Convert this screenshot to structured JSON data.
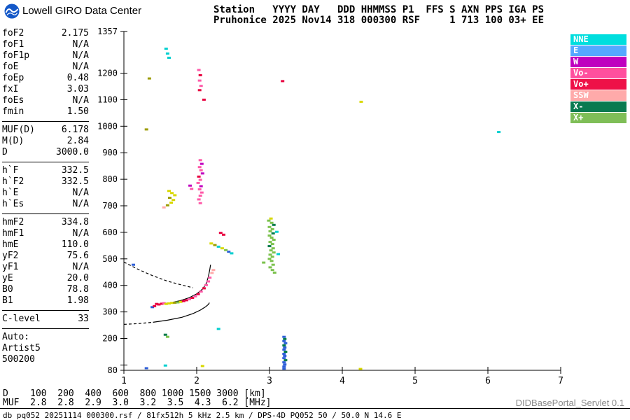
{
  "header": {
    "brand": "Lowell GIRO Data Center",
    "station_line1": "Station   YYYY DAY   DDD HHMMSS P1  FFS S AXN PPS IGA PS",
    "station_line2": "Pruhonice 2025 Nov14 318 000300 RSF     1 713 100 03+ EE"
  },
  "params": {
    "groups": [
      [
        {
          "label": "foF2",
          "value": "2.175"
        },
        {
          "label": "foF1",
          "value": "N/A"
        },
        {
          "label": "foF1p",
          "value": "N/A"
        },
        {
          "label": "foE",
          "value": "N/A"
        },
        {
          "label": "foEp",
          "value": "0.48"
        },
        {
          "label": "fxI",
          "value": "3.03"
        },
        {
          "label": "foEs",
          "value": "N/A"
        },
        {
          "label": "fmin",
          "value": "1.50"
        }
      ],
      [
        {
          "label": "MUF(D)",
          "value": "6.178"
        },
        {
          "label": "M(D)",
          "value": "2.84"
        },
        {
          "label": "D",
          "value": "3000.0"
        }
      ],
      [
        {
          "label": "h`F",
          "value": "332.5"
        },
        {
          "label": "h`F2",
          "value": "332.5"
        },
        {
          "label": "h`E",
          "value": "N/A"
        },
        {
          "label": "h`Es",
          "value": "N/A"
        }
      ],
      [
        {
          "label": "hmF2",
          "value": "334.8"
        },
        {
          "label": "hmF1",
          "value": "N/A"
        },
        {
          "label": "hmE",
          "value": "110.0"
        },
        {
          "label": "yF2",
          "value": "75.6"
        },
        {
          "label": "yF1",
          "value": "N/A"
        },
        {
          "label": "yE",
          "value": "20.0"
        },
        {
          "label": "B0",
          "value": "78.8"
        },
        {
          "label": "B1",
          "value": "1.98"
        }
      ],
      [
        {
          "label": "C-level",
          "value": "33"
        }
      ]
    ],
    "auto_lines": [
      "Auto:",
      "Artist5",
      "500200"
    ]
  },
  "legend": {
    "items": [
      {
        "label": "NNE",
        "color": "#00dede"
      },
      {
        "label": "E",
        "color": "#55a8ff"
      },
      {
        "label": "W",
        "color": "#bf00bf"
      },
      {
        "label": "Vo-",
        "color": "#ff4f9e"
      },
      {
        "label": "Vo+",
        "color": "#ee1148"
      },
      {
        "label": "SSW",
        "color": "#ffaaaa"
      },
      {
        "label": "X-",
        "color": "#0a7a50"
      },
      {
        "label": "X+",
        "color": "#7fbe57"
      }
    ]
  },
  "chart_data": {
    "type": "scatter",
    "title": "Pruhonice ionogram 2025 Nov14 318 000300",
    "x_unit": "MHz",
    "y_unit": "km",
    "xlim": [
      1,
      7
    ],
    "ylim": [
      80,
      1357
    ],
    "x_ticks": [
      1,
      2,
      3,
      4,
      5,
      6,
      7
    ],
    "y_tick_labels": [
      1357,
      1200,
      1100,
      1000,
      900,
      800,
      700,
      600,
      500,
      400,
      300,
      200,
      80
    ],
    "y_minor_ticks": [
      100
    ],
    "grid": false,
    "legend_position": "right",
    "palette": {
      "cyan": "#00cfcf",
      "blue": "#2e5fd8",
      "magenta": "#c000c0",
      "pink": "#ff59a8",
      "red": "#e80040",
      "salmon": "#ffaaaa",
      "dgreen": "#007a4a",
      "lgreen": "#7cc24e",
      "yellow": "#d8d800",
      "olive": "#9c9c00"
    },
    "points": [
      [
        1.58,
        1292,
        "cyan"
      ],
      [
        1.6,
        1274,
        "cyan"
      ],
      [
        1.62,
        1258,
        "cyan"
      ],
      [
        2.03,
        1212,
        "pink"
      ],
      [
        2.05,
        1192,
        "red"
      ],
      [
        2.04,
        1172,
        "pink"
      ],
      [
        2.06,
        1152,
        "pink"
      ],
      [
        2.04,
        1136,
        "red"
      ],
      [
        1.35,
        1180,
        "olive"
      ],
      [
        3.18,
        1170,
        "red"
      ],
      [
        2.1,
        1100,
        "red"
      ],
      [
        4.26,
        1092,
        "yellow"
      ],
      [
        1.31,
        988,
        "olive"
      ],
      [
        6.15,
        978,
        "cyan"
      ],
      [
        2.05,
        872,
        "pink"
      ],
      [
        2.07,
        858,
        "magenta"
      ],
      [
        2.04,
        846,
        "pink"
      ],
      [
        2.06,
        834,
        "pink"
      ],
      [
        2.08,
        822,
        "magenta"
      ],
      [
        2.03,
        810,
        "red"
      ],
      [
        2.05,
        798,
        "pink"
      ],
      [
        2.02,
        786,
        "pink"
      ],
      [
        2.06,
        774,
        "magenta"
      ],
      [
        2.04,
        762,
        "pink"
      ],
      [
        2.07,
        750,
        "pink"
      ],
      [
        2.05,
        738,
        "pink"
      ],
      [
        2.03,
        724,
        "pink"
      ],
      [
        2.05,
        710,
        "pink"
      ],
      [
        1.91,
        776,
        "magenta"
      ],
      [
        1.93,
        764,
        "pink"
      ],
      [
        1.62,
        756,
        "yellow"
      ],
      [
        1.66,
        748,
        "yellow"
      ],
      [
        1.7,
        740,
        "yellow"
      ],
      [
        1.63,
        730,
        "olive"
      ],
      [
        1.68,
        722,
        "yellow"
      ],
      [
        1.65,
        712,
        "yellow"
      ],
      [
        1.6,
        702,
        "olive"
      ],
      [
        1.55,
        694,
        "salmon"
      ],
      [
        3.02,
        652,
        "yellow"
      ],
      [
        2.99,
        644,
        "lgreen"
      ],
      [
        3.03,
        636,
        "lgreen"
      ],
      [
        3.06,
        628,
        "dgreen"
      ],
      [
        3.0,
        620,
        "lgreen"
      ],
      [
        3.04,
        612,
        "lgreen"
      ],
      [
        3.01,
        604,
        "lgreen"
      ],
      [
        3.1,
        602,
        "cyan"
      ],
      [
        3.05,
        596,
        "dgreen"
      ],
      [
        3.0,
        588,
        "lgreen"
      ],
      [
        3.03,
        580,
        "lgreen"
      ],
      [
        3.06,
        572,
        "lgreen"
      ],
      [
        3.01,
        564,
        "lgreen"
      ],
      [
        3.04,
        556,
        "lgreen"
      ],
      [
        3.0,
        548,
        "dgreen"
      ],
      [
        3.05,
        540,
        "lgreen"
      ],
      [
        3.02,
        532,
        "lgreen"
      ],
      [
        3.06,
        524,
        "lgreen"
      ],
      [
        3.12,
        518,
        "cyan"
      ],
      [
        3.01,
        516,
        "lgreen"
      ],
      [
        3.04,
        508,
        "lgreen"
      ],
      [
        3.0,
        500,
        "lgreen"
      ],
      [
        3.03,
        492,
        "lgreen"
      ],
      [
        2.92,
        486,
        "lgreen"
      ],
      [
        3.05,
        478,
        "lgreen"
      ],
      [
        3.01,
        468,
        "lgreen"
      ],
      [
        3.04,
        458,
        "lgreen"
      ],
      [
        3.07,
        448,
        "lgreen"
      ],
      [
        2.2,
        558,
        "yellow"
      ],
      [
        2.25,
        552,
        "olive"
      ],
      [
        2.3,
        546,
        "cyan"
      ],
      [
        2.35,
        540,
        "yellow"
      ],
      [
        2.4,
        533,
        "lgreen"
      ],
      [
        2.44,
        527,
        "blue"
      ],
      [
        2.48,
        521,
        "cyan"
      ],
      [
        2.33,
        598,
        "red"
      ],
      [
        2.37,
        591,
        "red"
      ],
      [
        1.13,
        478,
        "blue"
      ],
      [
        1.39,
        318,
        "blue"
      ],
      [
        1.42,
        322,
        "red"
      ],
      [
        1.45,
        330,
        "red"
      ],
      [
        1.48,
        328,
        "red"
      ],
      [
        1.52,
        331,
        "red"
      ],
      [
        1.55,
        333,
        "pink"
      ],
      [
        1.58,
        330,
        "yellow"
      ],
      [
        1.62,
        332,
        "yellow"
      ],
      [
        1.66,
        334,
        "yellow"
      ],
      [
        1.7,
        335,
        "olive"
      ],
      [
        1.74,
        336,
        "lgreen"
      ],
      [
        1.78,
        338,
        "yellow"
      ],
      [
        1.82,
        341,
        "red"
      ],
      [
        1.86,
        344,
        "red"
      ],
      [
        1.9,
        348,
        "pink"
      ],
      [
        1.94,
        353,
        "red"
      ],
      [
        1.98,
        359,
        "pink"
      ],
      [
        2.02,
        367,
        "red"
      ],
      [
        2.06,
        377,
        "pink"
      ],
      [
        2.1,
        389,
        "red"
      ],
      [
        2.13,
        401,
        "pink"
      ],
      [
        2.16,
        415,
        "pink"
      ],
      [
        2.18,
        429,
        "pink"
      ],
      [
        2.21,
        447,
        "salmon"
      ],
      [
        2.23,
        458,
        "salmon"
      ],
      [
        3.2,
        206,
        "blue"
      ],
      [
        3.21,
        198,
        "dgreen"
      ],
      [
        3.2,
        190,
        "blue"
      ],
      [
        3.22,
        182,
        "blue"
      ],
      [
        3.2,
        174,
        "dgreen"
      ],
      [
        3.21,
        166,
        "blue"
      ],
      [
        3.2,
        158,
        "blue"
      ],
      [
        3.22,
        150,
        "dgreen"
      ],
      [
        3.2,
        142,
        "blue"
      ],
      [
        3.21,
        134,
        "blue"
      ],
      [
        3.2,
        126,
        "blue"
      ],
      [
        3.22,
        118,
        "dgreen"
      ],
      [
        3.2,
        110,
        "blue"
      ],
      [
        3.21,
        102,
        "blue"
      ],
      [
        3.2,
        94,
        "blue"
      ],
      [
        3.2,
        86,
        "blue"
      ],
      [
        1.57,
        214,
        "dgreen"
      ],
      [
        1.6,
        206,
        "lgreen"
      ],
      [
        2.3,
        236,
        "cyan"
      ],
      [
        1.31,
        88,
        "blue"
      ],
      [
        1.57,
        98,
        "cyan"
      ],
      [
        2.08,
        96,
        "yellow"
      ],
      [
        4.25,
        85,
        "yellow"
      ]
    ],
    "curves": [
      {
        "style": "dashed",
        "points": [
          [
            1.0,
            488
          ],
          [
            1.2,
            460
          ],
          [
            1.4,
            436
          ],
          [
            1.6,
            416
          ],
          [
            1.8,
            401
          ],
          [
            1.95,
            391
          ]
        ]
      },
      {
        "style": "solid",
        "points": [
          [
            1.52,
            330
          ],
          [
            1.65,
            335
          ],
          [
            1.78,
            343
          ],
          [
            1.9,
            354
          ],
          [
            2.0,
            368
          ],
          [
            2.08,
            386
          ],
          [
            2.13,
            406
          ],
          [
            2.16,
            432
          ],
          [
            2.18,
            460
          ],
          [
            2.19,
            478
          ]
        ]
      },
      {
        "style": "dashed",
        "points": [
          [
            1.0,
            253
          ],
          [
            1.2,
            256
          ],
          [
            1.4,
            261
          ]
        ]
      },
      {
        "style": "solid",
        "points": [
          [
            1.4,
            261
          ],
          [
            1.6,
            269
          ],
          [
            1.8,
            280
          ],
          [
            1.95,
            294
          ],
          [
            2.05,
            307
          ],
          [
            2.12,
            319
          ],
          [
            2.16,
            328
          ],
          [
            2.175,
            334.8
          ]
        ]
      }
    ]
  },
  "muf_table": {
    "row1_label": "D",
    "row2_label": "MUF",
    "d_values": [
      100,
      200,
      400,
      600,
      800,
      1000,
      1500,
      3000
    ],
    "d_unit": "[km]",
    "muf_values": [
      "2.8",
      "2.8",
      "2.9",
      "3.0",
      "3.2",
      "3.5",
      "4.3",
      "6.2"
    ],
    "muf_unit": "[MHz]"
  },
  "footer": {
    "info": "db pq052 20251114 000300.rsf / 81fx512h 5 kHz 2.5 km / DPS-4D PQ052 50 / 50.0 N 14.6 E",
    "servlet": "DIDBasePortal_Servlet 0.1"
  }
}
